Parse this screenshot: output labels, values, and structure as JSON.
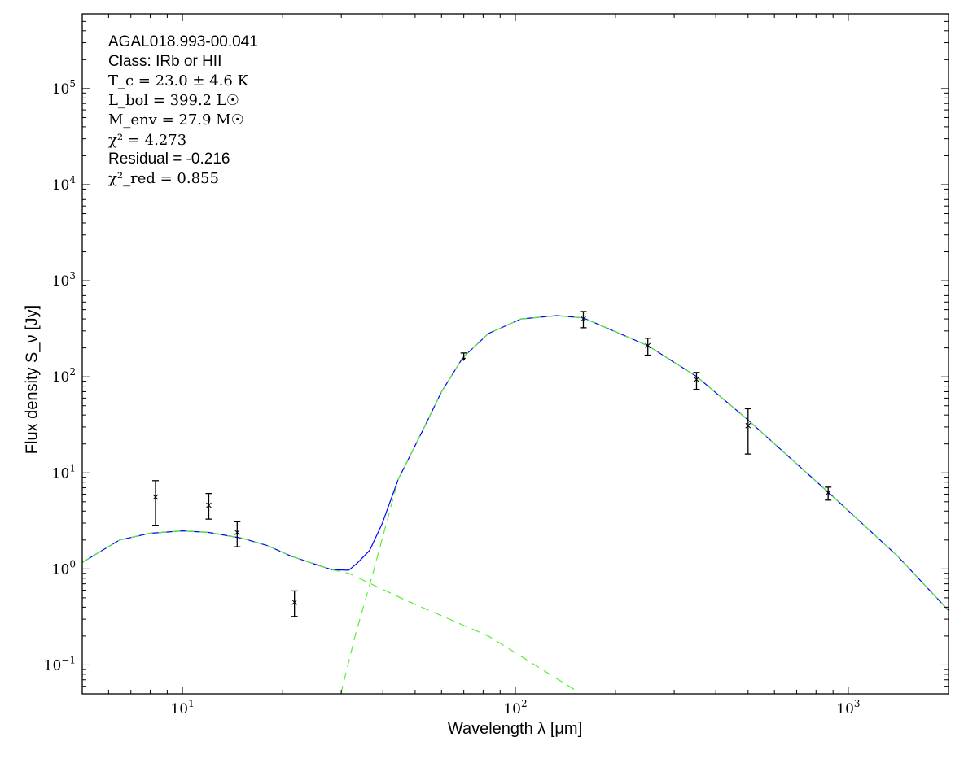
{
  "chart_data": {
    "type": "scatter",
    "xlabel": "Wavelength λ [μm]",
    "ylabel": "Flux density S_ν [Jy]",
    "xscale": "log",
    "yscale": "log",
    "xlim": [
      5,
      2000
    ],
    "ylim": [
      0.05,
      600000
    ],
    "grid": false,
    "x_tick_labels": [
      "10^1",
      "10^2",
      "10^3"
    ],
    "y_tick_labels": [
      "10^-1",
      "10^0",
      "10^1",
      "10^2",
      "10^3",
      "10^4",
      "10^5"
    ],
    "annotations": {
      "source": "AGAL018.993-00.041",
      "class": "Class: IRb or HII",
      "tc": "T_c = 23.0 ± 4.6 K",
      "lbol": "L_bol = 399.2 L☉",
      "menv": "M_env = 27.9 M☉",
      "chi2": "χ² = 4.273",
      "residual": "Residual = -0.216",
      "chi2_red": "χ²_red = 0.855"
    },
    "points": [
      {
        "x": 8.3,
        "y": 5.6,
        "ylow": 2.85,
        "yhigh": 8.3
      },
      {
        "x": 12,
        "y": 4.6,
        "ylow": 3.3,
        "yhigh": 6.1
      },
      {
        "x": 14.6,
        "y": 2.4,
        "ylow": 1.7,
        "yhigh": 3.1
      },
      {
        "x": 21.7,
        "y": 0.45,
        "ylow": 0.32,
        "yhigh": 0.59
      },
      {
        "x": 70,
        "y": 177,
        "upper_limit": true
      },
      {
        "x": 160,
        "y": 401,
        "ylow": 324,
        "yhigh": 478
      },
      {
        "x": 250,
        "y": 211,
        "ylow": 168,
        "yhigh": 252
      },
      {
        "x": 350,
        "y": 94,
        "ylow": 74,
        "yhigh": 111
      },
      {
        "x": 500,
        "y": 31,
        "ylow": 15.7,
        "yhigh": 46.5
      },
      {
        "x": 870,
        "y": 6.2,
        "ylow": 5.2,
        "yhigh": 7.1
      }
    ],
    "series": [
      {
        "style": "solid",
        "color": "#0000ff",
        "x": [
          5,
          6.47,
          8,
          10,
          12,
          15.1,
          18,
          21.2,
          25,
          28.2,
          31.6,
          33.5,
          36.5,
          39.8,
          44.5,
          52.7,
          60,
          69.5,
          83,
          104,
          133,
          160,
          250,
          350,
          500,
          870,
          1406,
          2030
        ],
        "y": [
          1.17,
          2.0,
          2.35,
          2.49,
          2.4,
          2.09,
          1.75,
          1.36,
          1.12,
          0.98,
          0.97,
          1.15,
          1.56,
          2.96,
          8.6,
          27.6,
          70,
          158,
          282,
          400,
          433,
          410,
          211,
          101,
          35.5,
          6.3,
          1.36,
          0.35
        ]
      },
      {
        "style": "dashed",
        "color": "#55ee33",
        "x": [
          29.9,
          33,
          37,
          41,
          44.5,
          52.7,
          60,
          69.5,
          83,
          104,
          133,
          160,
          250,
          350,
          500,
          870,
          1406,
          2030
        ],
        "y": [
          0.05,
          0.2,
          0.8,
          3.0,
          8.6,
          27.6,
          70,
          158,
          282,
          400,
          433,
          410,
          211,
          101,
          35.5,
          6.3,
          1.36,
          0.35
        ]
      },
      {
        "style": "dashed",
        "color": "#55ee33",
        "x": [
          5,
          6.47,
          8,
          10,
          12,
          15.1,
          18,
          21.2,
          25,
          28.2,
          31.6,
          47,
          83,
          155
        ],
        "y": [
          1.17,
          2.0,
          2.35,
          2.49,
          2.4,
          2.09,
          1.75,
          1.36,
          1.12,
          0.98,
          0.9,
          0.47,
          0.2,
          0.052
        ]
      }
    ]
  }
}
